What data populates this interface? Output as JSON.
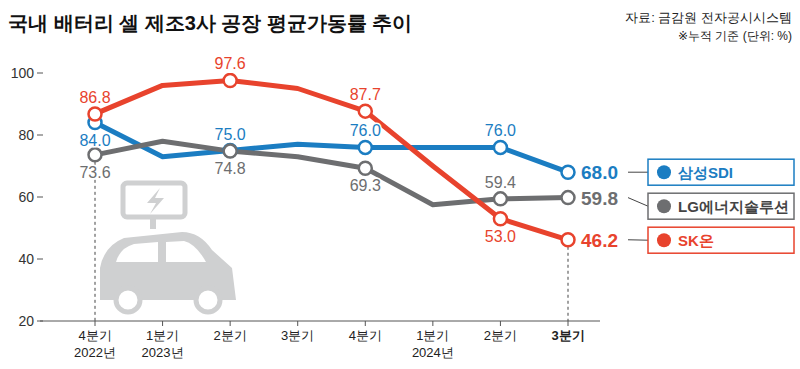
{
  "chart_data": {
    "type": "line",
    "title": "국내 배터리 셀 제조3사 공장 평균가동률 추이",
    "subtitle": "자료: 금감원 전자공시시스템",
    "annotations": [
      "※누적 기준 (단위: %)"
    ],
    "categories": [
      "4분기\n2022년",
      "1분기\n2023년",
      "2분기",
      "3분기",
      "4분기",
      "1분기\n2024년",
      "2분기",
      "3분기"
    ],
    "series": [
      {
        "name": "삼성SDI",
        "color": "#1b7dc2",
        "values": [
          84.0,
          73,
          75.0,
          77,
          76.0,
          76,
          76.0,
          68.0
        ],
        "value_labels": [
          "84.0",
          null,
          "75.0",
          null,
          "76.0",
          null,
          "76.0",
          "68.0"
        ]
      },
      {
        "name": "LG에너지솔루션",
        "color": "#6d6e70",
        "values": [
          73.6,
          78,
          74.8,
          73,
          69.3,
          57.5,
          59.4,
          59.8
        ],
        "value_labels": [
          "73.6",
          null,
          "74.8",
          null,
          "69.3",
          null,
          "59.4",
          "59.8"
        ]
      },
      {
        "name": "SK온",
        "color": "#e8432d",
        "values": [
          86.8,
          96,
          97.6,
          95,
          87.7,
          70,
          53.0,
          46.2
        ],
        "value_labels": [
          "86.8",
          null,
          "97.6",
          null,
          "87.7",
          null,
          "53.0",
          "46.2"
        ]
      }
    ],
    "ylim": [
      20,
      100
    ],
    "yticks": [
      20,
      40,
      60,
      80,
      100
    ],
    "grid": false,
    "legend": "right",
    "marker": "circle",
    "data_labels": true
  }
}
